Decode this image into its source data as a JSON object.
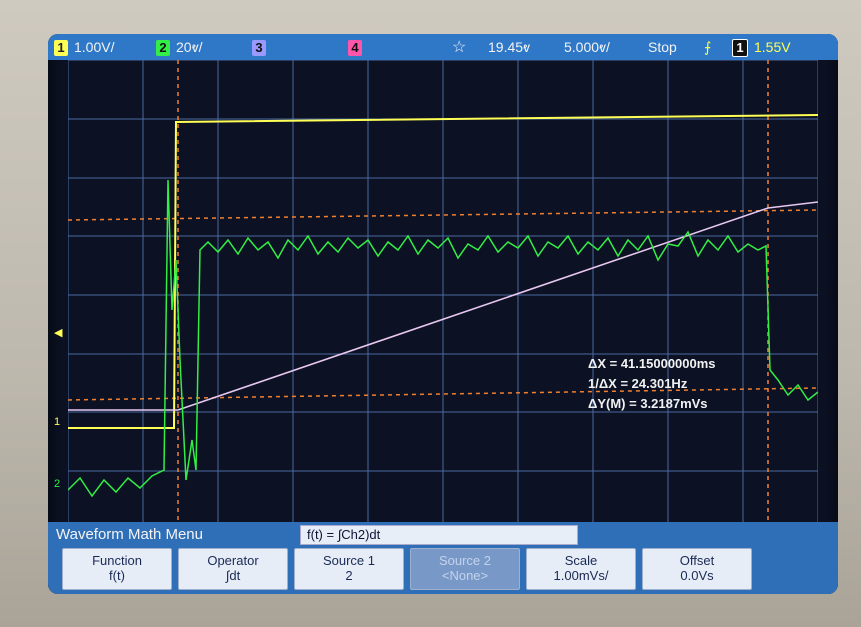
{
  "topbar": {
    "ch1_num": "1",
    "ch1_scale": "1.00V/",
    "ch2_num": "2",
    "ch2_scale": "20ⱴ/",
    "ch3_num": "3",
    "ch4_num": "4",
    "trigger_icon": "☆",
    "delay": "19.45ⱴ",
    "timebase": "5.000ⱴ/",
    "run_state": "Stop",
    "edge_icon": "⨍",
    "trig_ch_num": "1",
    "trig_level": "1.55V"
  },
  "measurements": {
    "delta_x": "ΔX = 41.15000000ms",
    "inv_delta_x": "1/ΔX = 24.301Hz",
    "delta_y": "ΔY(M) = 3.2187mVs"
  },
  "math_menu": {
    "title": "Waveform Math Menu",
    "formula": "f(t) = ∫Ch2)dt",
    "softkeys": [
      {
        "label": "Function",
        "value": "f(t)"
      },
      {
        "label": "Operator",
        "value": "∫dt"
      },
      {
        "label": "Source 1",
        "value": "2"
      },
      {
        "label": "Source 2",
        "value": "<None>"
      },
      {
        "label": "Scale",
        "value": "1.00mVs/"
      },
      {
        "label": "Offset",
        "value": "0.0Vs"
      }
    ]
  },
  "colors": {
    "ch1": "#ffff55",
    "ch2": "#33ee44",
    "ch3": "#9999ff",
    "ch4": "#ff55aa",
    "math": "#e8c8f0",
    "cursor": "#f08030",
    "grid": "#4a6aa0",
    "topbar": "#2f78c8"
  }
}
